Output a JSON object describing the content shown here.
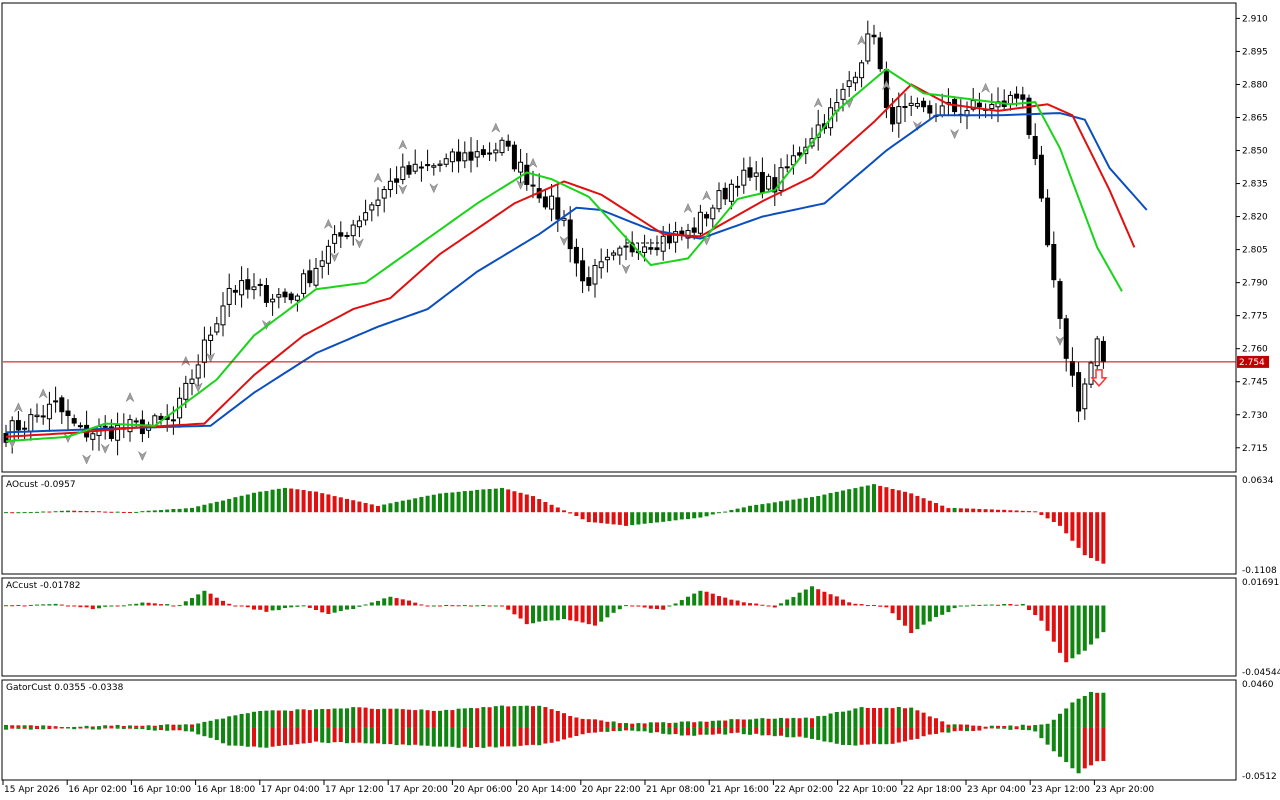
{
  "colors": {
    "background": "#ffffff",
    "frame": "#000000",
    "candle_body": "#000000",
    "jaw_line": "#0b4fbf",
    "teeth_line": "#e01010",
    "lips_line": "#19d419",
    "histogram_up": "#108510",
    "histogram_down": "#e01010",
    "bid_line": "#c00000",
    "bid_label_bg": "#c00000",
    "bid_label_text": "#ffffff",
    "fractal_arrow": "#a0a0a0",
    "sell_arrow": "#ff3030"
  },
  "chart_data": [
    {
      "type": "candlestick",
      "name": "main",
      "instrument_window_title": "",
      "current_price": "2.754",
      "y_tick_labels": [
        "2.910",
        "2.895",
        "2.880",
        "2.865",
        "2.850",
        "2.835",
        "2.820",
        "2.805",
        "2.790",
        "2.775",
        "2.760",
        "2.745",
        "2.730",
        "2.715"
      ],
      "y_ticks": [
        2.91,
        2.895,
        2.88,
        2.865,
        2.85,
        2.835,
        2.82,
        2.805,
        2.79,
        2.775,
        2.76,
        2.745,
        2.73,
        2.715
      ],
      "ylim": [
        2.704,
        2.917
      ],
      "bar_count": 178,
      "anchors": [
        [
          0,
          2.722
        ],
        [
          8,
          2.734
        ],
        [
          12,
          2.722
        ],
        [
          20,
          2.724
        ],
        [
          27,
          2.727
        ],
        [
          36,
          2.788
        ],
        [
          46,
          2.783
        ],
        [
          52,
          2.805
        ],
        [
          63,
          2.838
        ],
        [
          80,
          2.852
        ],
        [
          90,
          2.818
        ],
        [
          93,
          2.79
        ],
        [
          102,
          2.808
        ],
        [
          110,
          2.812
        ],
        [
          118,
          2.838
        ],
        [
          124,
          2.834
        ],
        [
          130,
          2.858
        ],
        [
          134,
          2.87
        ],
        [
          140,
          2.905
        ],
        [
          142,
          2.866
        ],
        [
          150,
          2.868
        ],
        [
          160,
          2.87
        ],
        [
          164,
          2.876
        ],
        [
          166,
          2.842
        ],
        [
          170,
          2.77
        ],
        [
          173,
          2.735
        ],
        [
          176,
          2.762
        ],
        [
          177,
          2.754
        ]
      ],
      "lines": [
        {
          "name": "",
          "color": "#0b4fbf",
          "anchors": [
            [
              0,
              2.722
            ],
            [
              20,
              2.724
            ],
            [
              33,
              2.725
            ],
            [
              40,
              2.74
            ],
            [
              50,
              2.758
            ],
            [
              60,
              2.77
            ],
            [
              68,
              2.778
            ],
            [
              76,
              2.795
            ],
            [
              86,
              2.812
            ],
            [
              92,
              2.824
            ],
            [
              96,
              2.823
            ],
            [
              104,
              2.814
            ],
            [
              112,
              2.81
            ],
            [
              122,
              2.82
            ],
            [
              132,
              2.826
            ],
            [
              142,
              2.85
            ],
            [
              150,
              2.866
            ],
            [
              160,
              2.866
            ],
            [
              170,
              2.867
            ],
            [
              174,
              2.864
            ],
            [
              178,
              2.842
            ],
            [
              184,
              2.823
            ]
          ]
        },
        {
          "name": "",
          "color": "#e01010",
          "anchors": [
            [
              0,
              2.72
            ],
            [
              12,
              2.722
            ],
            [
              20,
              2.724
            ],
            [
              32,
              2.726
            ],
            [
              40,
              2.748
            ],
            [
              48,
              2.766
            ],
            [
              56,
              2.778
            ],
            [
              62,
              2.783
            ],
            [
              70,
              2.803
            ],
            [
              82,
              2.826
            ],
            [
              90,
              2.836
            ],
            [
              96,
              2.83
            ],
            [
              106,
              2.812
            ],
            [
              112,
              2.811
            ],
            [
              122,
              2.827
            ],
            [
              130,
              2.838
            ],
            [
              140,
              2.863
            ],
            [
              146,
              2.88
            ],
            [
              152,
              2.871
            ],
            [
              160,
              2.868
            ],
            [
              168,
              2.871
            ],
            [
              172,
              2.866
            ],
            [
              178,
              2.832
            ],
            [
              182,
              2.806
            ]
          ]
        },
        {
          "name": "",
          "color": "#19d419",
          "anchors": [
            [
              0,
              2.718
            ],
            [
              10,
              2.72
            ],
            [
              16,
              2.726
            ],
            [
              24,
              2.725
            ],
            [
              34,
              2.746
            ],
            [
              40,
              2.766
            ],
            [
              50,
              2.787
            ],
            [
              58,
              2.79
            ],
            [
              66,
              2.806
            ],
            [
              76,
              2.826
            ],
            [
              84,
              2.84
            ],
            [
              88,
              2.837
            ],
            [
              94,
              2.829
            ],
            [
              104,
              2.798
            ],
            [
              110,
              2.801
            ],
            [
              118,
              2.828
            ],
            [
              124,
              2.832
            ],
            [
              134,
              2.868
            ],
            [
              142,
              2.887
            ],
            [
              148,
              2.876
            ],
            [
              162,
              2.871
            ],
            [
              166,
              2.872
            ],
            [
              170,
              2.851
            ],
            [
              176,
              2.806
            ],
            [
              180,
              2.786
            ]
          ]
        }
      ],
      "sell_signal_bar": 175,
      "fractals_up": [
        2,
        6,
        20,
        29,
        52,
        60,
        64,
        79,
        85,
        110,
        113,
        131,
        138,
        142,
        158
      ],
      "fractals_down": [
        1,
        10,
        13,
        16,
        22,
        31,
        33,
        42,
        53,
        57,
        64,
        69,
        83,
        90,
        100,
        113,
        136,
        147,
        153,
        170
      ],
      "x_tick_labels": [
        "15 Apr 2026",
        "16 Apr 02:00",
        "16 Apr 10:00",
        "16 Apr 18:00",
        "17 Apr 04:00",
        "17 Apr 12:00",
        "17 Apr 20:00",
        "20 Apr 06:00",
        "20 Apr 14:00",
        "20 Apr 22:00",
        "21 Apr 08:00",
        "21 Apr 16:00",
        "22 Apr 02:00",
        "22 Apr 10:00",
        "22 Apr 18:00",
        "23 Apr 04:00",
        "23 Apr 12:00",
        "23 Apr 20:00"
      ]
    },
    {
      "type": "histogram",
      "name": "AOcust",
      "label": "AOcust -0.0957",
      "y_tick_labels": [
        "0.0634",
        "-0.1108"
      ],
      "ylim": [
        -0.1108,
        0.0634
      ],
      "anchors": [
        [
          0,
          0.0
        ],
        [
          4,
          0.0
        ],
        [
          10,
          0.003
        ],
        [
          20,
          0.0
        ],
        [
          30,
          0.008
        ],
        [
          40,
          0.036
        ],
        [
          45,
          0.045
        ],
        [
          50,
          0.038
        ],
        [
          60,
          0.012
        ],
        [
          70,
          0.035
        ],
        [
          80,
          0.045
        ],
        [
          85,
          0.03
        ],
        [
          94,
          -0.018
        ],
        [
          100,
          -0.025
        ],
        [
          112,
          -0.01
        ],
        [
          120,
          0.012
        ],
        [
          130,
          0.028
        ],
        [
          140,
          0.052
        ],
        [
          146,
          0.035
        ],
        [
          152,
          0.008
        ],
        [
          166,
          0.002
        ],
        [
          170,
          -0.025
        ],
        [
          174,
          -0.08
        ],
        [
          177,
          -0.0957
        ]
      ],
      "bar_count": 178
    },
    {
      "type": "histogram",
      "name": "ACcust",
      "label": "ACcust -0.01782",
      "y_tick_labels": [
        "0.01691",
        "-0.04544"
      ],
      "ylim": [
        -0.04544,
        0.01691
      ],
      "anchors": [
        [
          0,
          0.0
        ],
        [
          8,
          0.001
        ],
        [
          14,
          -0.002
        ],
        [
          22,
          0.002
        ],
        [
          28,
          0.0
        ],
        [
          32,
          0.01
        ],
        [
          36,
          0.001
        ],
        [
          42,
          -0.004
        ],
        [
          48,
          0.0
        ],
        [
          52,
          -0.006
        ],
        [
          56,
          -0.002
        ],
        [
          62,
          0.006
        ],
        [
          68,
          0.0
        ],
        [
          80,
          0.0
        ],
        [
          84,
          -0.012
        ],
        [
          90,
          -0.009
        ],
        [
          95,
          -0.013
        ],
        [
          100,
          0.0
        ],
        [
          106,
          -0.003
        ],
        [
          112,
          0.01
        ],
        [
          118,
          0.003
        ],
        [
          124,
          -0.001
        ],
        [
          130,
          0.013
        ],
        [
          136,
          0.002
        ],
        [
          142,
          -0.001
        ],
        [
          146,
          -0.018
        ],
        [
          150,
          -0.008
        ],
        [
          154,
          0.0
        ],
        [
          164,
          0.001
        ],
        [
          167,
          -0.01
        ],
        [
          171,
          -0.038
        ],
        [
          174,
          -0.03
        ],
        [
          177,
          -0.01782
        ]
      ],
      "bar_count": 178
    },
    {
      "type": "histogram",
      "name": "GatorCust",
      "label": "GatorCust 0.0355 -0.0338",
      "y_tick_labels": [
        "0.0460",
        "-0.0512"
      ],
      "ylim": [
        -0.0512,
        0.046
      ],
      "upper_anchors": [
        [
          0,
          0.002
        ],
        [
          10,
          0.001
        ],
        [
          20,
          0.002
        ],
        [
          30,
          0.003
        ],
        [
          40,
          0.016
        ],
        [
          48,
          0.018
        ],
        [
          56,
          0.02
        ],
        [
          64,
          0.018
        ],
        [
          70,
          0.017
        ],
        [
          80,
          0.022
        ],
        [
          86,
          0.022
        ],
        [
          92,
          0.01
        ],
        [
          100,
          0.004
        ],
        [
          108,
          0.005
        ],
        [
          118,
          0.008
        ],
        [
          130,
          0.01
        ],
        [
          138,
          0.02
        ],
        [
          146,
          0.02
        ],
        [
          152,
          0.003
        ],
        [
          160,
          0.001
        ],
        [
          168,
          0.003
        ],
        [
          172,
          0.025
        ],
        [
          175,
          0.036
        ],
        [
          177,
          0.0355
        ]
      ],
      "lower_anchors": [
        [
          0,
          -0.002
        ],
        [
          10,
          -0.001
        ],
        [
          20,
          -0.002
        ],
        [
          30,
          -0.004
        ],
        [
          36,
          -0.018
        ],
        [
          42,
          -0.02
        ],
        [
          50,
          -0.015
        ],
        [
          58,
          -0.016
        ],
        [
          66,
          -0.018
        ],
        [
          70,
          -0.02
        ],
        [
          78,
          -0.02
        ],
        [
          86,
          -0.018
        ],
        [
          94,
          -0.006
        ],
        [
          100,
          -0.003
        ],
        [
          110,
          -0.008
        ],
        [
          118,
          -0.006
        ],
        [
          128,
          -0.01
        ],
        [
          136,
          -0.018
        ],
        [
          144,
          -0.016
        ],
        [
          150,
          -0.006
        ],
        [
          160,
          -0.001
        ],
        [
          166,
          -0.004
        ],
        [
          170,
          -0.03
        ],
        [
          173,
          -0.046
        ],
        [
          176,
          -0.0338
        ],
        [
          177,
          -0.0338
        ]
      ],
      "bar_count": 178
    }
  ]
}
